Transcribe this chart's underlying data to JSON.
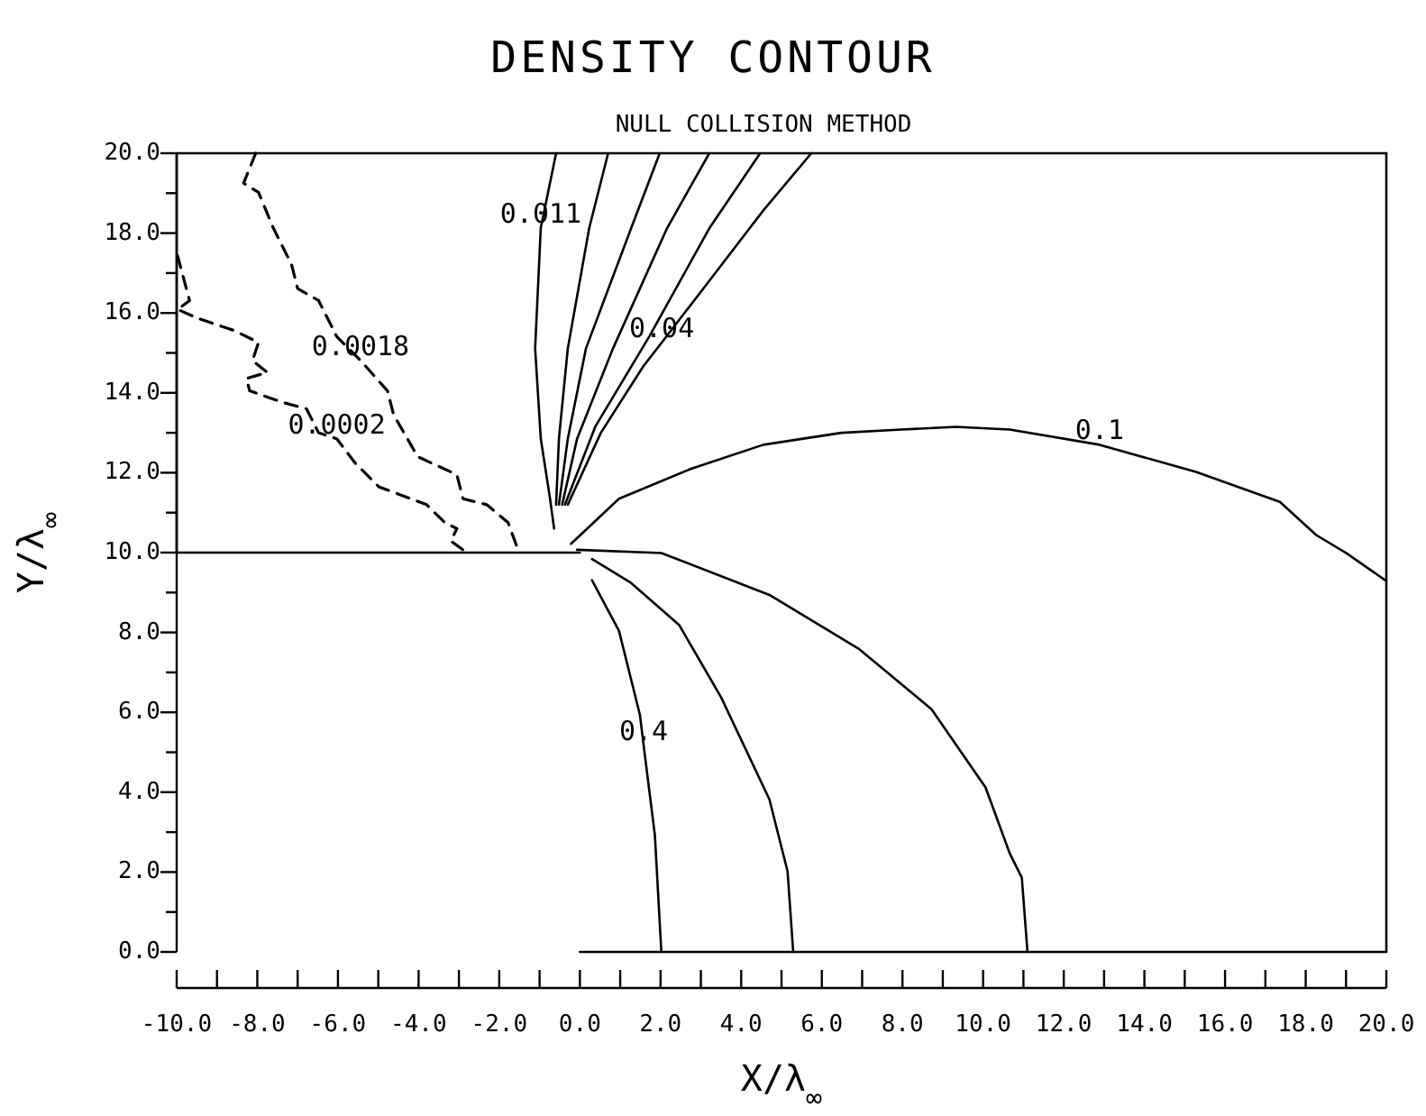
{
  "chart_data": {
    "type": "line",
    "title": "DENSITY CONTOUR",
    "subtitle": "NULL COLLISION METHOD",
    "xlabel": "X/λ$_{∞}$",
    "ylabel": "Y/λ$_{∞}$",
    "xlim": [
      -10,
      20
    ],
    "ylim": [
      0,
      20
    ],
    "xticks": [
      {
        "value": -10,
        "label": "-10.0"
      },
      {
        "value": -9,
        "label": null
      },
      {
        "value": -8,
        "label": "-8.0"
      },
      {
        "value": -7,
        "label": null
      },
      {
        "value": -6,
        "label": "-6.0"
      },
      {
        "value": -5,
        "label": null
      },
      {
        "value": -4,
        "label": "-4.0"
      },
      {
        "value": -3,
        "label": null
      },
      {
        "value": -2,
        "label": "-2.0"
      },
      {
        "value": -1,
        "label": null
      },
      {
        "value": 0,
        "label": "0.0"
      },
      {
        "value": 1,
        "label": null
      },
      {
        "value": 2,
        "label": "2.0"
      },
      {
        "value": 3,
        "label": null
      },
      {
        "value": 4,
        "label": "4.0"
      },
      {
        "value": 5,
        "label": null
      },
      {
        "value": 6,
        "label": "6.0"
      },
      {
        "value": 7,
        "label": null
      },
      {
        "value": 8,
        "label": "8.0"
      },
      {
        "value": 9,
        "label": null
      },
      {
        "value": 10,
        "label": "10.0"
      },
      {
        "value": 11,
        "label": null
      },
      {
        "value": 12,
        "label": "12.0"
      },
      {
        "value": 13,
        "label": null
      },
      {
        "value": 14,
        "label": "14.0"
      },
      {
        "value": 15,
        "label": null
      },
      {
        "value": 16,
        "label": "16.0"
      },
      {
        "value": 17,
        "label": null
      },
      {
        "value": 18,
        "label": "18.0"
      },
      {
        "value": 19,
        "label": null
      },
      {
        "value": 20,
        "label": "20.0"
      }
    ],
    "yticks": [
      {
        "value": 0,
        "label": "0.0"
      },
      {
        "value": 1,
        "label": null
      },
      {
        "value": 2,
        "label": "2.0"
      },
      {
        "value": 3,
        "label": null
      },
      {
        "value": 4,
        "label": "4.0"
      },
      {
        "value": 5,
        "label": null
      },
      {
        "value": 6,
        "label": "6.0"
      },
      {
        "value": 7,
        "label": null
      },
      {
        "value": 8,
        "label": "8.0"
      },
      {
        "value": 9,
        "label": null
      },
      {
        "value": 10,
        "label": "10.0"
      },
      {
        "value": 11,
        "label": null
      },
      {
        "value": 12,
        "label": "12.0"
      },
      {
        "value": 13,
        "label": null
      },
      {
        "value": 14,
        "label": "14.0"
      },
      {
        "value": 15,
        "label": null
      },
      {
        "value": 16,
        "label": "16.0"
      },
      {
        "value": 17,
        "label": null
      },
      {
        "value": 18,
        "label": "18.0"
      },
      {
        "value": 19,
        "label": null
      },
      {
        "value": 20,
        "label": "20.0"
      }
    ],
    "series": [
      {
        "color": "#000000",
        "line_style": "dashed",
        "x": [
          -8.04,
          -8.34,
          -7.97,
          -7.6,
          -7.15,
          -7.0,
          -6.48,
          -6.03,
          -5.44,
          -4.77,
          -4.62,
          -4.02,
          -3.05,
          -2.9,
          -2.31,
          -1.78,
          -1.56
        ],
        "values": [
          20.0,
          19.25,
          19.02,
          18.12,
          17.21,
          16.61,
          16.31,
          15.41,
          14.81,
          14.05,
          13.45,
          12.4,
          11.95,
          11.35,
          11.2,
          10.75,
          10.14
        ]
      },
      {
        "color": "#000000",
        "line_style": "dashed",
        "x": [
          -9.98,
          -9.68,
          -9.98,
          -9.46,
          -8.57,
          -7.97,
          -8.12,
          -7.75,
          -8.27,
          -8.19,
          -7.37,
          -6.78,
          -6.48,
          -6.03,
          -5.58,
          -4.99,
          -3.8,
          -3.35,
          -3.05,
          -3.2,
          -2.9
        ],
        "values": [
          17.44,
          16.31,
          16.09,
          15.86,
          15.56,
          15.26,
          14.81,
          14.51,
          14.36,
          14.05,
          13.76,
          13.6,
          13.0,
          12.85,
          12.25,
          11.65,
          11.2,
          10.75,
          10.6,
          10.29,
          10.07
        ]
      },
      {
        "color": "#000000",
        "line_style": "solid",
        "x": [
          -0.59,
          -0.97,
          -1.11,
          -0.97,
          -0.74,
          -0.64
        ],
        "values": [
          20.0,
          18.13,
          15.11,
          12.85,
          11.35,
          10.6
        ]
      },
      {
        "color": "#000000",
        "line_style": "solid",
        "x": [
          0.7,
          0.23,
          -0.3,
          -0.52,
          -0.59
        ],
        "values": [
          20.0,
          18.12,
          15.11,
          12.85,
          11.2
        ]
      },
      {
        "color": "#000000",
        "line_style": "solid",
        "x": [
          1.98,
          1.27,
          0.15,
          -0.3,
          -0.52
        ],
        "values": [
          20.0,
          18.12,
          15.11,
          12.85,
          11.2
        ]
      },
      {
        "color": "#000000",
        "line_style": "solid",
        "x": [
          3.21,
          2.16,
          0.82,
          -0.07,
          -0.44
        ],
        "values": [
          20.0,
          18.12,
          15.11,
          12.85,
          11.2
        ]
      },
      {
        "color": "#000000",
        "line_style": "solid",
        "x": [
          4.47,
          3.21,
          1.72,
          0.38,
          -0.37
        ],
        "values": [
          20.0,
          18.12,
          15.41,
          13.15,
          11.2
        ]
      },
      {
        "color": "#000000",
        "line_style": "solid",
        "x": [
          5.74,
          4.55,
          3.06,
          2.03,
          1.57,
          0.52,
          -0.3
        ],
        "values": [
          20.0,
          18.57,
          16.61,
          15.26,
          14.66,
          13.0,
          11.2
        ]
      },
      {
        "color": "#000000",
        "line_style": "solid",
        "x": [
          -0.22,
          0.97,
          2.76,
          4.55,
          6.49,
          7.97,
          9.32,
          10.66,
          12.89,
          15.28,
          17.36,
          18.26,
          19.0,
          19.97
        ],
        "values": [
          10.22,
          11.35,
          12.1,
          12.7,
          13.0,
          13.08,
          13.15,
          13.08,
          12.7,
          12.02,
          11.27,
          10.44,
          9.99,
          9.31
        ]
      },
      {
        "color": "#000000",
        "line_style": "solid",
        "x": [
          -0.07,
          2.02,
          4.7,
          6.93,
          8.72,
          10.06,
          10.66,
          10.96,
          11.1
        ],
        "values": [
          10.07,
          9.99,
          8.94,
          7.58,
          6.08,
          4.12,
          2.47,
          1.86,
          0
        ]
      },
      {
        "color": "#000000",
        "line_style": "solid",
        "x": [
          0.3,
          1.27,
          2.46,
          3.5,
          4.7,
          5.15,
          5.29
        ],
        "values": [
          9.84,
          9.24,
          8.19,
          6.38,
          3.82,
          2.02,
          0
        ]
      },
      {
        "color": "#000000",
        "line_style": "solid",
        "x": [
          0.3,
          0.97,
          1.49,
          1.58,
          1.86,
          2.02
        ],
        "values": [
          9.31,
          8.04,
          5.93,
          5.18,
          2.92,
          0
        ]
      },
      {
        "color": "#000000",
        "line_style": "solid",
        "x": [
          -10,
          0
        ],
        "values": [
          10,
          10
        ]
      },
      {
        "color": "#000000",
        "line_style": "solid",
        "x": [
          0,
          20
        ],
        "values": [
          0,
          0
        ]
      }
    ],
    "annotations": [
      {
        "text": "0.011",
        "x": -0.97,
        "y": 18.13
      },
      {
        "text": "0.0018",
        "x": -5.44,
        "y": 14.81
      },
      {
        "text": "0.0002",
        "x": -6.03,
        "y": 12.85
      },
      {
        "text": "0.04",
        "x": 2.03,
        "y": 15.26
      },
      {
        "text": "0.1",
        "x": 12.89,
        "y": 12.7
      },
      {
        "text": "0.4",
        "x": 1.58,
        "y": 5.18
      }
    ]
  }
}
